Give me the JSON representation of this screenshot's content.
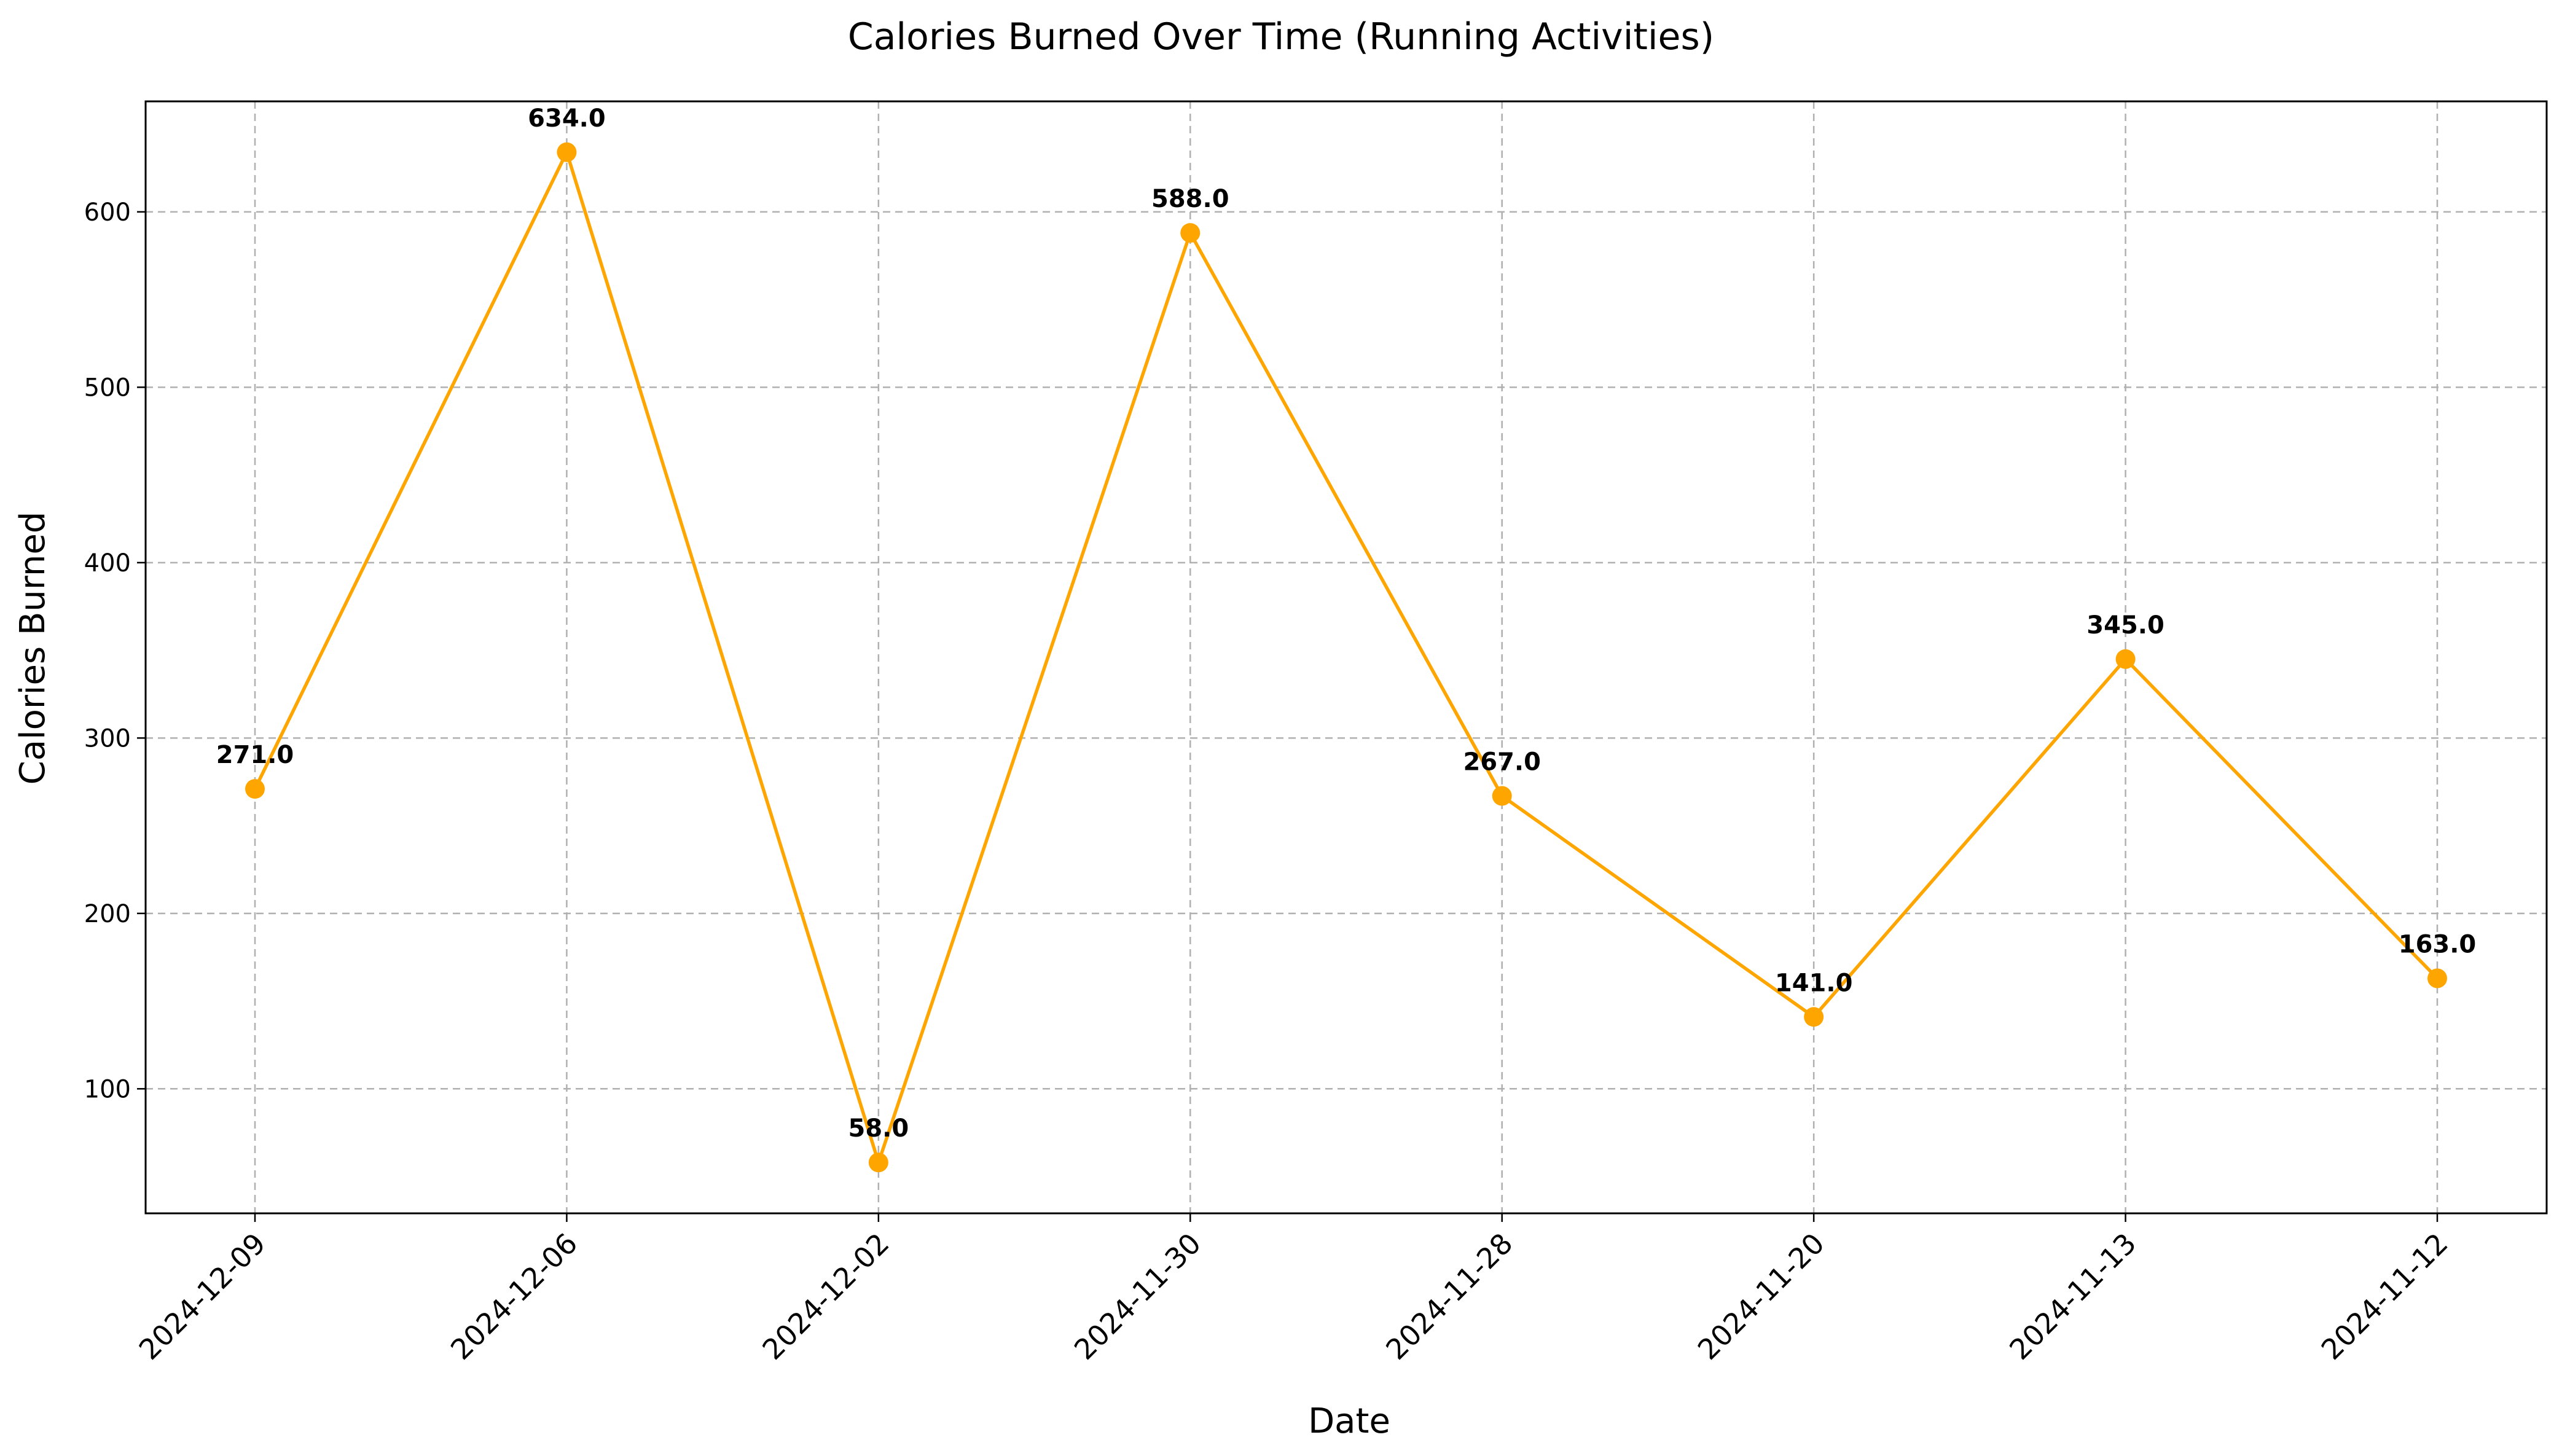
{
  "chart_data": {
    "type": "line",
    "title": "Calories Burned Over Time (Running Activities)",
    "xlabel": "Date",
    "ylabel": "Calories Burned",
    "categories": [
      "2024-12-09",
      "2024-12-06",
      "2024-12-02",
      "2024-11-30",
      "2024-11-28",
      "2024-11-20",
      "2024-11-13",
      "2024-11-12"
    ],
    "series": [
      {
        "values": [
          271.0,
          634.0,
          58.0,
          588.0,
          267.0,
          141.0,
          345.0,
          163.0
        ],
        "data_labels": [
          "271.0",
          "634.0",
          "58.0",
          "588.0",
          "267.0",
          "141.0",
          "345.0",
          "163.0"
        ],
        "color": "#FFA500",
        "marker": "circle"
      }
    ],
    "ylim": [
      29,
      663
    ],
    "yticks": [
      100,
      200,
      300,
      400,
      500,
      600
    ],
    "grid": true,
    "legend": "none"
  }
}
